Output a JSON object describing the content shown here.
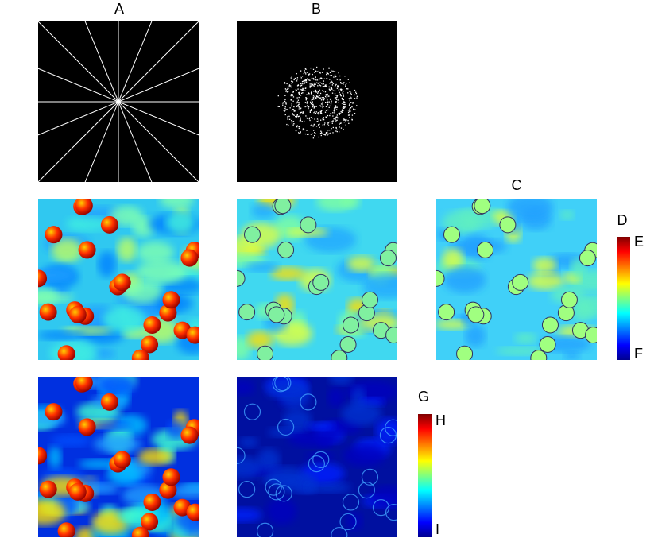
{
  "panels": {
    "a": {
      "label": "A"
    },
    "b": {
      "label": "B"
    },
    "c": {
      "label": "C"
    }
  },
  "colorbars": [
    {
      "title": "D",
      "max_label": "E",
      "min_label": "F"
    },
    {
      "title": "G",
      "max_label": "H",
      "min_label": "I"
    }
  ]
}
